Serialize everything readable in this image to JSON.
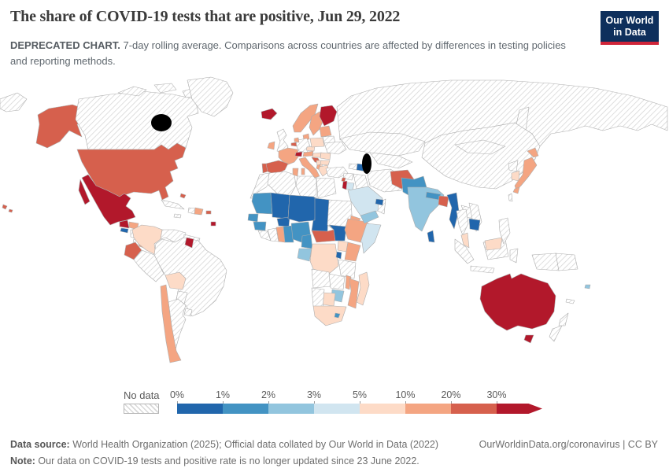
{
  "header": {
    "title": "The share of COVID-19 tests that are positive, Jun 29, 2022",
    "subtitle_bold": "DEPRECATED CHART.",
    "subtitle_rest": " 7-day rolling average. Comparisons across countries are affected by differences in testing policies and reporting methods.",
    "logo": {
      "line1": "Our World",
      "line2": "in Data",
      "bg_color": "#0e2f5c",
      "accent_color": "#d02539"
    }
  },
  "legend": {
    "no_data_label": "No data",
    "tick_labels": [
      "0%",
      "1%",
      "2%",
      "3%",
      "5%",
      "10%",
      "20%",
      "30%"
    ]
  },
  "footer": {
    "source_label": "Data source:",
    "source_text": " World Health Organization (2025); Official data collated by Our World in Data (2022)",
    "link_text": "OurWorldinData.org/coronavirus | CC BY",
    "note_label": "Note:",
    "note_text": " Our data on COVID-19 tests and positive rate is no longer updated since 23 June 2022."
  },
  "chart_data": {
    "type": "choropleth_map",
    "title": "The share of COVID-19 tests that are positive",
    "date": "Jun 29, 2022",
    "metric": "Share of COVID-19 tests that are positive, 7-day rolling average",
    "no_data_style": "diagonal-hatch",
    "bins": [
      {
        "label": "0%",
        "range": "0-1%",
        "color": "#2166ac"
      },
      {
        "label": "1%",
        "range": "1-2%",
        "color": "#4393c3"
      },
      {
        "label": "2%",
        "range": "2-3%",
        "color": "#92c5de"
      },
      {
        "label": "3%",
        "range": "3-5%",
        "color": "#d1e5f0"
      },
      {
        "label": "5%",
        "range": "5-10%",
        "color": "#fddbc7"
      },
      {
        "label": "10%",
        "range": "10-20%",
        "color": "#f4a582"
      },
      {
        "label": "20%",
        "range": "20-30%",
        "color": "#d6604d"
      },
      {
        "label": "30%",
        "range": ">30%",
        "color": "#b2182b"
      }
    ],
    "palette": {
      "0-1%": "#2166ac",
      "1-2%": "#4393c3",
      "2-3%": "#92c5de",
      "3-5%": "#d1e5f0",
      "5-10%": "#fddbc7",
      "10-20%": "#f4a582",
      "20-30%": "#d6604d",
      ">30%": "#b2182b"
    },
    "values": {
      "United States": "20-30%",
      "Canada": "No data",
      "Greenland": "No data",
      "Mexico": ">30%",
      "Guatemala": ">30%",
      "Honduras": "10-20%",
      "El Salvador": "0-1%",
      "Nicaragua": "No data",
      "Costa Rica": "No data",
      "Panama": "10-20%",
      "Cuba": "No data",
      "Jamaica": "No data",
      "Haiti": "No data",
      "Dominican Republic": "10-20%",
      "Puerto Rico": "20-30%",
      "Bahamas": "20-30%",
      "Trinidad and Tobago": ">30%",
      "Colombia": "5-10%",
      "Venezuela": "No data",
      "Guyana": "No data",
      "Suriname": ">30%",
      "Ecuador": "20-30%",
      "Peru": "No data",
      "Brazil": "No data",
      "Bolivia": "5-10%",
      "Paraguay": "No data",
      "Chile": "10-20%",
      "Argentina": "No data",
      "Uruguay": "No data",
      "Iceland": ">30%",
      "Norway": "10-20%",
      "Sweden": "10-20%",
      "Finland": ">30%",
      "Denmark": "10-20%",
      "United Kingdom": "No data",
      "Ireland": "10-20%",
      "France": "10-20%",
      "Spain": "20-30%",
      "Portugal": "20-30%",
      "Germany": "No data",
      "Netherlands": "10-20%",
      "Belgium": "20-30%",
      "Switzerland": ">30%",
      "Austria": "10-20%",
      "Czechia": "5-10%",
      "Poland": "5-10%",
      "Italy": "10-20%",
      "Croatia": "20-30%",
      "Serbia": "5-10%",
      "Albania": "10-20%",
      "Hungary": "5-10%",
      "Romania": "5-10%",
      "Bulgaria": "5-10%",
      "Greece": "5-10%",
      "Estonia": "10-20%",
      "Belarus": "No data",
      "Ukraine": "No data",
      "Turkey": "No data",
      "Russia": "No data",
      "Morocco": "No data",
      "Algeria": "No data",
      "Tunisia": "10-20%",
      "Libya": "No data",
      "Egypt": "No data",
      "Mauritania": "1-2%",
      "Senegal": "1-2%",
      "Guinea": "1-2%",
      "Sierra Leone": "No data",
      "Ivory Coast": "No data",
      "Ghana": "10-20%",
      "Togo": "1-2%",
      "Mali": "0-1%",
      "Burkina Faso": "0-1%",
      "Niger": "0-1%",
      "Nigeria": "1-2%",
      "Chad": "0-1%",
      "Sudan": "No data",
      "Eritrea": "10-20%",
      "Central African Republic": "20-30%",
      "South Sudan": "0-1%",
      "Ethiopia": "10-20%",
      "Somalia": "3-5%",
      "Cameroon": "1-2%",
      "Gabon": "2-3%",
      "Democratic Republic of Congo": "5-10%",
      "Uganda": "5-10%",
      "Kenya": "10-20%",
      "Rwanda": "0-1%",
      "Tanzania": "No data",
      "Angola": "No data",
      "Zambia": "No data",
      "Malawi": "10-20%",
      "Mozambique": "10-20%",
      "Zimbabwe": "2-3%",
      "Botswana": "5-10%",
      "Namibia": "No data",
      "South Africa": "5-10%",
      "Lesotho": "1-2%",
      "Madagascar": "5-10%",
      "Syria": "No data",
      "Lebanon": "20-30%",
      "Israel": ">30%",
      "Jordan": "3-5%",
      "Iraq": "No data",
      "Saudi Arabia": "3-5%",
      "Yemen": "2-3%",
      "Oman": "No data",
      "United Arab Emirates": "0-1%",
      "Iran": "No data",
      "Georgia": "No data",
      "Azerbaijan": "0-1%",
      "Kazakhstan": "No data",
      "Uzbekistan": "No data",
      "Afghanistan": "20-30%",
      "Pakistan": "1-2%",
      "India": "2-3%",
      "Nepal": "1-2%",
      "Bhutan": "0-1%",
      "Bangladesh": "20-30%",
      "Sri Lanka": "0-1%",
      "Myanmar": "0-1%",
      "Thailand": "No data",
      "Laos": "No data",
      "Vietnam": "No data",
      "Cambodia": "0-1%",
      "Malaysia": "5-10%",
      "Indonesia": "No data",
      "Philippines": "No data",
      "China": "No data",
      "Mongolia": "No data",
      "North Korea": "No data",
      "South Korea": "5-10%",
      "Japan": "10-20%",
      "Taiwan": "No data",
      "Australia": ">30%",
      "New Zealand": "No data",
      "Papua New Guinea": "No data",
      "Fiji": "2-3%",
      "New Caledonia": "No data"
    }
  }
}
